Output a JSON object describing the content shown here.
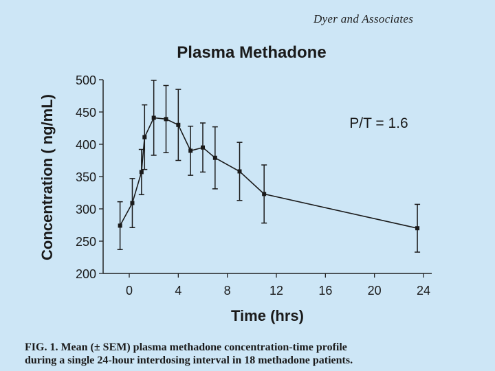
{
  "attribution": "Dyer and Associates",
  "caption": {
    "line1_prefix": "FIG. 1.",
    "line1_text": "Mean (± SEM) plasma methadone concentration-time profile",
    "line2_text": "during a single 24-hour interdosing interval in 18 methadone patients."
  },
  "chart_data": {
    "type": "line",
    "title": "Plasma Methadone",
    "xlabel": "Time (hrs)",
    "ylabel": "Concentration ( ng/mL)",
    "annotation": "P/T = 1.6",
    "xlim": [
      -2,
      24
    ],
    "ylim": [
      200,
      500
    ],
    "x_ticks": [
      "0",
      "4",
      "8",
      "12",
      "16",
      "20",
      "24"
    ],
    "y_ticks": [
      "500",
      "450",
      "400",
      "350",
      "300",
      "250",
      "200"
    ],
    "series": [
      {
        "name": "Mean plasma methadone",
        "x": [
          -0.75,
          0.25,
          1.0,
          1.25,
          2.0,
          3.0,
          4.0,
          5.0,
          6.0,
          7.0,
          9.0,
          11.0,
          23.5
        ],
        "y": [
          274,
          309,
          357,
          411,
          441,
          439,
          430,
          390,
          395,
          379,
          358,
          323,
          270
        ],
        "err": [
          37,
          38,
          35,
          50,
          58,
          52,
          55,
          38,
          38,
          48,
          45,
          45,
          37
        ]
      }
    ]
  }
}
